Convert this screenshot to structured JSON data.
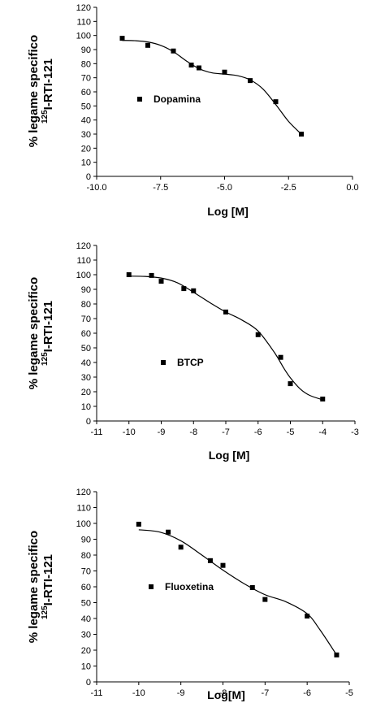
{
  "chart_data": [
    {
      "type": "scatter",
      "ylabel_line1": "% legame specifico",
      "ylabel_sup": "125",
      "ylabel_line2": "I-RTI-121",
      "xlabel": "Log [M]",
      "xlim": [
        -10.0,
        0.0
      ],
      "ylim": [
        0,
        120
      ],
      "xticks": [
        -10.0,
        -7.5,
        -5.0,
        -2.5,
        0.0
      ],
      "xtick_labels": [
        "-10.0",
        "-7.5",
        "-5.0",
        "-2.5",
        "0.0"
      ],
      "yticks": [
        0,
        10,
        20,
        30,
        40,
        50,
        60,
        70,
        80,
        90,
        100,
        110,
        120
      ],
      "series": [
        {
          "name": "Dopamina",
          "points": [
            [
              -9,
              98
            ],
            [
              -8,
              93
            ],
            [
              -7,
              89
            ],
            [
              -6.3,
              79
            ],
            [
              -6,
              77
            ],
            [
              -5,
              74
            ],
            [
              -4,
              68
            ],
            [
              -3,
              53
            ],
            [
              -2,
              30
            ]
          ],
          "curve": [
            [
              -9,
              96.5
            ],
            [
              -8.5,
              96.3
            ],
            [
              -8,
              95.4
            ],
            [
              -7.5,
              93
            ],
            [
              -7,
              88.5
            ],
            [
              -6.5,
              82
            ],
            [
              -6,
              76.5
            ],
            [
              -5.5,
              73.5
            ],
            [
              -5,
              72.6
            ],
            [
              -4.5,
              71.5
            ],
            [
              -4,
              68.5
            ],
            [
              -3.5,
              62
            ],
            [
              -3,
              51
            ],
            [
              -2.5,
              39
            ],
            [
              -2,
              30
            ]
          ]
        }
      ]
    },
    {
      "type": "scatter",
      "ylabel_line1": "% legame specifico",
      "ylabel_sup": "125",
      "ylabel_line2": "I-RTI-121",
      "xlabel": "Log [M]",
      "xlim": [
        -11,
        -3
      ],
      "ylim": [
        0,
        120
      ],
      "xticks": [
        -11,
        -10,
        -9,
        -8,
        -7,
        -6,
        -5,
        -4,
        -3
      ],
      "xtick_labels": [
        "-11",
        "-10",
        "-9",
        "-8",
        "-7",
        "-6",
        "-5",
        "-4",
        "-3"
      ],
      "yticks": [
        0,
        10,
        20,
        30,
        40,
        50,
        60,
        70,
        80,
        90,
        100,
        110,
        120
      ],
      "series": [
        {
          "name": "BTCP",
          "points": [
            [
              -10,
              100
            ],
            [
              -9.3,
              99.5
            ],
            [
              -9,
              95.5
            ],
            [
              -8.3,
              90.5
            ],
            [
              -8,
              89
            ],
            [
              -7,
              74.5
            ],
            [
              -6,
              59
            ],
            [
              -5.3,
              43.5
            ],
            [
              -5,
              25.5
            ],
            [
              -4,
              15
            ]
          ],
          "curve": [
            [
              -10,
              99
            ],
            [
              -9.5,
              98.8
            ],
            [
              -9,
              97.7
            ],
            [
              -8.5,
              94.5
            ],
            [
              -8,
              88
            ],
            [
              -7.5,
              81
            ],
            [
              -7,
              74.5
            ],
            [
              -6.5,
              69
            ],
            [
              -6,
              61.5
            ],
            [
              -5.5,
              47
            ],
            [
              -5.2,
              36
            ],
            [
              -5,
              29.5
            ],
            [
              -4.7,
              22
            ],
            [
              -4.4,
              17.5
            ],
            [
              -4,
              14.5
            ]
          ]
        }
      ]
    },
    {
      "type": "scatter",
      "ylabel_line1": "% legame specifico",
      "ylabel_sup": "125",
      "ylabel_line2": "I-RTI-121",
      "xlabel": "Log[M]",
      "xlim": [
        -11,
        -5
      ],
      "ylim": [
        0,
        120
      ],
      "xticks": [
        -11,
        -10,
        -9,
        -8,
        -7,
        -6,
        -5
      ],
      "xtick_labels": [
        "-11",
        "-10",
        "-9",
        "-8",
        "-7",
        "-6",
        "-5"
      ],
      "yticks": [
        0,
        10,
        20,
        30,
        40,
        50,
        60,
        70,
        80,
        90,
        100,
        110,
        120
      ],
      "series": [
        {
          "name": "Fluoxetina",
          "points": [
            [
              -10,
              99.5
            ],
            [
              -9.3,
              94.5
            ],
            [
              -9,
              85
            ],
            [
              -8.3,
              76.5
            ],
            [
              -8,
              73.5
            ],
            [
              -7.3,
              59.5
            ],
            [
              -7,
              52
            ],
            [
              -6,
              41.5
            ],
            [
              -5.3,
              17
            ]
          ],
          "curve": [
            [
              -10,
              96
            ],
            [
              -9.5,
              94.5
            ],
            [
              -9,
              89
            ],
            [
              -8.5,
              80
            ],
            [
              -8,
              70.5
            ],
            [
              -7.5,
              62
            ],
            [
              -7,
              55
            ],
            [
              -6.5,
              50.5
            ],
            [
              -6,
              43
            ],
            [
              -5.7,
              33
            ],
            [
              -5.3,
              17
            ]
          ]
        }
      ]
    }
  ]
}
